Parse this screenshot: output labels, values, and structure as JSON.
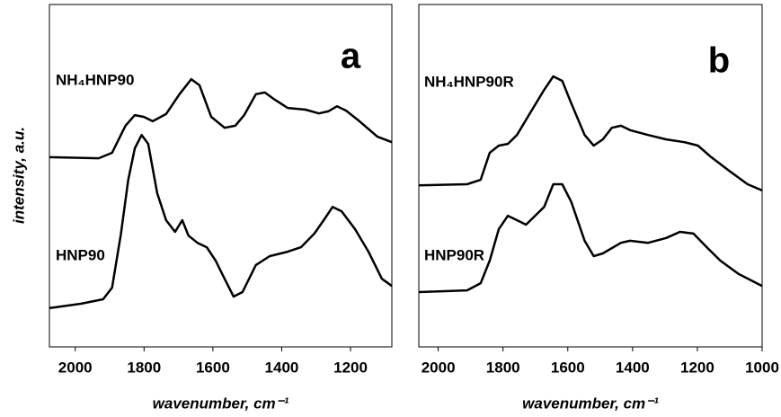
{
  "chart_data": [
    {
      "type": "line",
      "label": "a",
      "ylabel": "intensity, a.u.",
      "xlabel": "wavenumber, cm⁻¹",
      "xlim": [
        2075,
        1080
      ],
      "xticks": [
        2000,
        1800,
        1600,
        1400,
        1200
      ],
      "ylim": [
        0,
        100
      ],
      "series": [
        {
          "name": "NH₄HNP90",
          "color": "#000000",
          "x": [
            2075,
            1932,
            1893,
            1854,
            1827,
            1801,
            1775,
            1736,
            1697,
            1663,
            1639,
            1605,
            1566,
            1535,
            1509,
            1475,
            1449,
            1423,
            1383,
            1331,
            1292,
            1265,
            1239,
            1213,
            1174,
            1122,
            1080
          ],
          "values": [
            55.4,
            55.1,
            56.7,
            64.6,
            67.7,
            67.2,
            65.9,
            68.0,
            73.8,
            78.2,
            76.4,
            67.2,
            64.0,
            64.6,
            67.7,
            73.8,
            74.3,
            72.4,
            69.8,
            69.3,
            68.2,
            68.8,
            70.3,
            69.0,
            65.9,
            61.4,
            59.8
          ]
        },
        {
          "name": "HNP90",
          "color": "#000000",
          "x": [
            2076,
            1984,
            1919,
            1893,
            1867,
            1846,
            1827,
            1807,
            1788,
            1762,
            1736,
            1710,
            1689,
            1671,
            1645,
            1618,
            1592,
            1566,
            1540,
            1514,
            1475,
            1435,
            1383,
            1344,
            1305,
            1278,
            1252,
            1226,
            1187,
            1148,
            1109,
            1080
          ],
          "values": [
            11.3,
            12.6,
            13.9,
            17.3,
            33.1,
            48.8,
            58.0,
            61.9,
            59.3,
            44.9,
            37.0,
            33.6,
            37.0,
            32.5,
            30.4,
            29.1,
            25.2,
            19.9,
            14.7,
            16.0,
            23.9,
            26.5,
            27.8,
            29.1,
            33.1,
            37.0,
            40.9,
            39.6,
            34.4,
            27.8,
            19.9,
            17.8
          ]
        }
      ]
    },
    {
      "type": "line",
      "label": "b",
      "xlabel": "wavenumber, cm⁻¹",
      "xlim": [
        2060,
        1000
      ],
      "xticks": [
        2000,
        1800,
        1600,
        1400,
        1200,
        1000
      ],
      "ylim": [
        0,
        100
      ],
      "series": [
        {
          "name": "NH₄HNP90R",
          "color": "#000000",
          "x": [
            2060,
            1911,
            1869,
            1841,
            1813,
            1785,
            1757,
            1715,
            1673,
            1645,
            1617,
            1589,
            1548,
            1520,
            1492,
            1464,
            1436,
            1408,
            1352,
            1296,
            1240,
            1198,
            1157,
            1101,
            1045,
            1000
          ],
          "values": [
            47.2,
            47.5,
            48.8,
            56.7,
            58.8,
            59.3,
            61.9,
            68.5,
            75.1,
            79.0,
            77.7,
            71.1,
            61.9,
            58.8,
            60.6,
            64.0,
            64.6,
            63.3,
            61.9,
            60.6,
            59.8,
            58.8,
            55.4,
            51.4,
            47.5,
            45.7
          ]
        },
        {
          "name": "HNP90R",
          "color": "#000000",
          "x": [
            2060,
            1911,
            1869,
            1841,
            1813,
            1785,
            1757,
            1729,
            1701,
            1673,
            1645,
            1617,
            1589,
            1548,
            1520,
            1492,
            1436,
            1408,
            1352,
            1296,
            1254,
            1212,
            1171,
            1129,
            1073,
            1000
          ],
          "values": [
            16.0,
            16.5,
            18.6,
            25.2,
            34.4,
            38.3,
            37.0,
            35.7,
            38.3,
            40.9,
            47.5,
            47.5,
            42.3,
            31.0,
            26.5,
            27.3,
            30.4,
            31.0,
            30.4,
            31.8,
            33.6,
            33.1,
            29.1,
            25.2,
            21.3,
            17.8
          ]
        }
      ]
    }
  ]
}
